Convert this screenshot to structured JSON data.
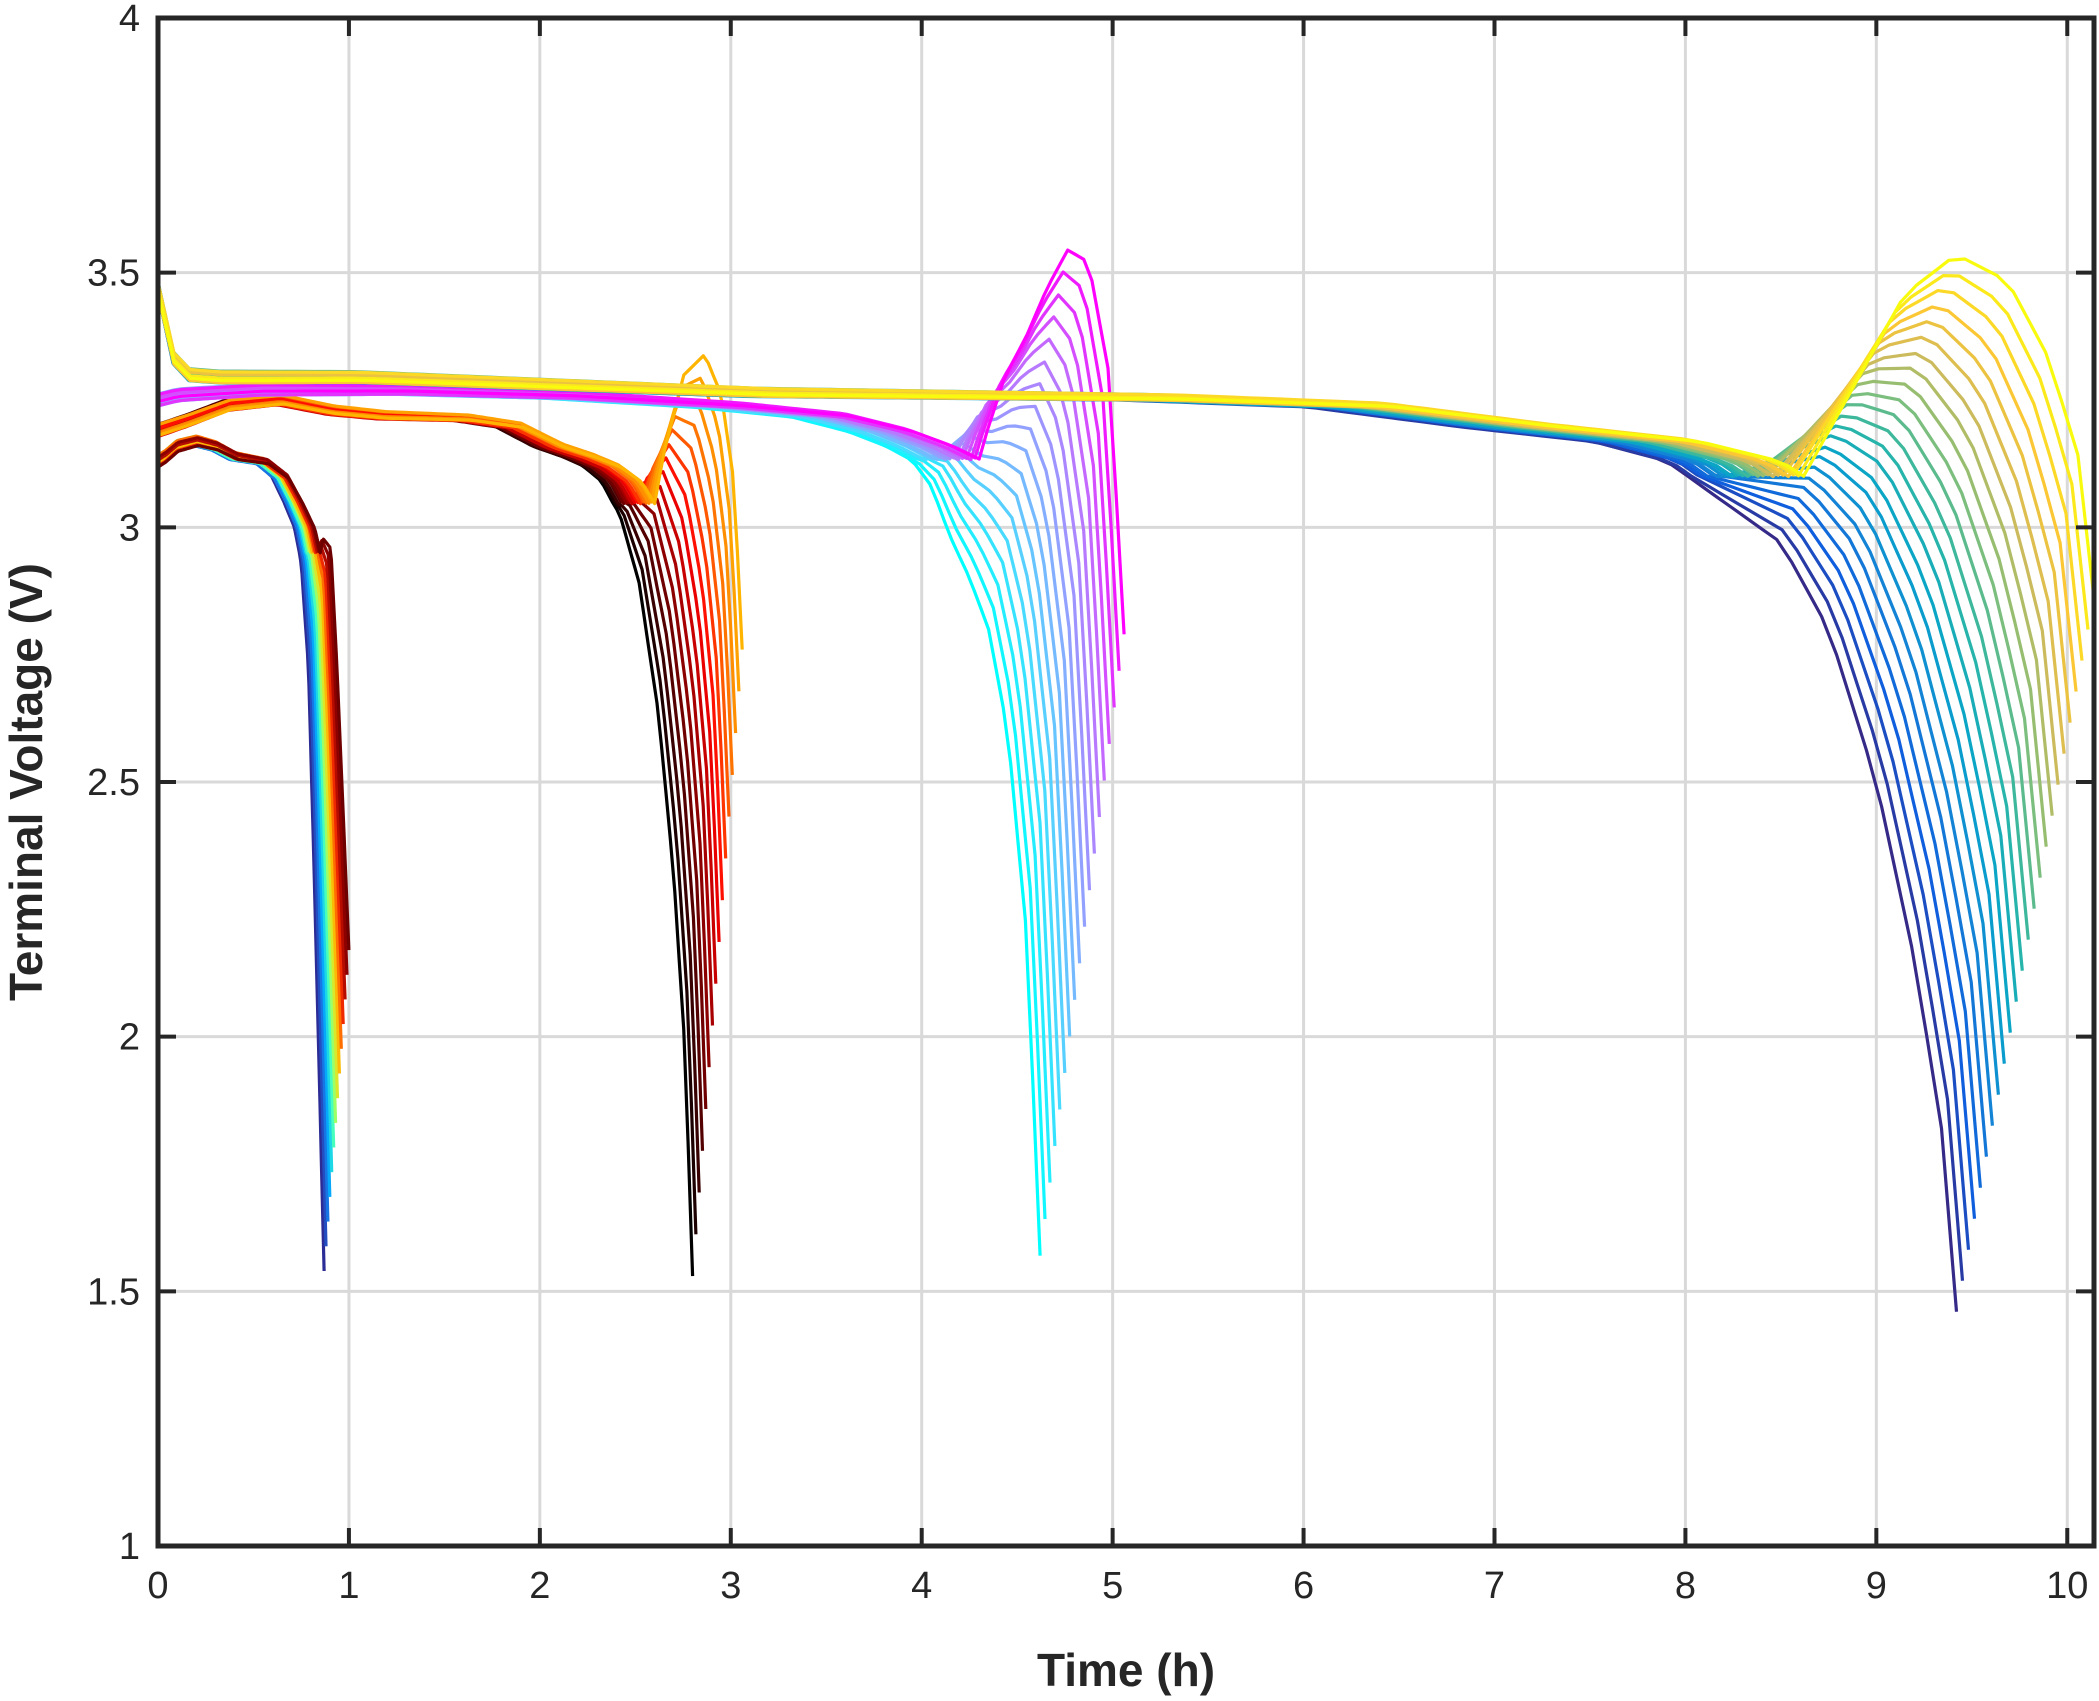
{
  "chart_data": {
    "type": "line",
    "title": "",
    "xlabel": "Time (h)",
    "ylabel": "Terminal Voltage (V)",
    "xlim": [
      0,
      10.14
    ],
    "ylim": [
      1,
      4
    ],
    "xticks": [
      0,
      1,
      2,
      3,
      4,
      5,
      6,
      7,
      8,
      9,
      10
    ],
    "yticks": [
      1,
      1.5,
      2,
      2.5,
      3,
      3.5,
      4
    ],
    "xtick_labels": [
      "0",
      "1",
      "2",
      "3",
      "4",
      "5",
      "6",
      "7",
      "8",
      "9",
      "10"
    ],
    "ytick_labels": [
      "1",
      "1.5",
      "2",
      "2.5",
      "3",
      "3.5",
      "4"
    ],
    "grid": true,
    "legend": "none",
    "groups": [
      {
        "colormap": "jet",
        "curve_count": 14,
        "color_stops": [
          "#2c2c96",
          "#1e64dc",
          "#00b4ff",
          "#3cffc8",
          "#c8ff3c",
          "#ffb400",
          "#ff3200",
          "#a00000",
          "#6e0000"
        ],
        "t_start": [
          0.87,
          1.0
        ],
        "v_end": [
          1.54,
          2.17
        ],
        "profile": [
          [
            0.0,
            3.13
          ],
          [
            0.04,
            3.14
          ],
          [
            0.1,
            3.16
          ],
          [
            0.2,
            3.17
          ],
          [
            0.3,
            3.16
          ],
          [
            0.4,
            3.14
          ],
          [
            0.55,
            3.13
          ],
          [
            0.65,
            3.1
          ],
          [
            0.72,
            3.05
          ],
          [
            0.78,
            3.0
          ],
          [
            0.82,
            2.93
          ],
          [
            0.86,
            2.75
          ],
          [
            0.89,
            2.4
          ],
          [
            0.92,
            2.0
          ],
          [
            0.95,
            1.6
          ]
        ]
      },
      {
        "colormap": "hot",
        "curve_count": 16,
        "color_stops": [
          "#000000",
          "#3c0000",
          "#780000",
          "#b40000",
          "#ff0000",
          "#ff5000",
          "#ff8c00",
          "#ffb400"
        ],
        "t_start": [
          2.8,
          3.06
        ],
        "v_end": [
          1.53,
          2.76
        ],
        "profile": [
          [
            0.0,
            3.19
          ],
          [
            0.15,
            3.21
          ],
          [
            0.35,
            3.24
          ],
          [
            0.6,
            3.25
          ],
          [
            0.85,
            3.23
          ],
          [
            1.1,
            3.22
          ],
          [
            1.5,
            3.215
          ],
          [
            1.75,
            3.2
          ],
          [
            1.95,
            3.16
          ],
          [
            2.1,
            3.14
          ],
          [
            2.22,
            3.12
          ],
          [
            2.32,
            3.09
          ],
          [
            2.42,
            3.02
          ],
          [
            2.52,
            2.88
          ],
          [
            2.62,
            2.62
          ],
          [
            2.7,
            2.3
          ],
          [
            2.76,
            1.95
          ],
          [
            2.8,
            1.5
          ]
        ]
      },
      {
        "colormap": "cool",
        "curve_count": 18,
        "color_stops": [
          "#00ffff",
          "#4cd8ff",
          "#8ca8ff",
          "#c070ff",
          "#ff00ff"
        ],
        "t_start": [
          4.62,
          5.06
        ],
        "v_end": [
          1.57,
          2.79
        ],
        "profile": [
          [
            0.0,
            3.25
          ],
          [
            0.1,
            3.26
          ],
          [
            0.5,
            3.27
          ],
          [
            1.2,
            3.27
          ],
          [
            2.0,
            3.26
          ],
          [
            2.8,
            3.24
          ],
          [
            3.3,
            3.22
          ],
          [
            3.6,
            3.19
          ],
          [
            3.8,
            3.16
          ],
          [
            3.95,
            3.13
          ],
          [
            4.05,
            3.08
          ],
          [
            4.15,
            2.98
          ],
          [
            4.25,
            2.9
          ],
          [
            4.35,
            2.8
          ],
          [
            4.45,
            2.6
          ],
          [
            4.55,
            2.2
          ],
          [
            4.62,
            1.57
          ]
        ]
      },
      {
        "colormap": "parula",
        "curve_count": 24,
        "color_stops": [
          "#352a87",
          "#0f5cdd",
          "#1481d6",
          "#06a4ca",
          "#2eb7a4",
          "#87bf77",
          "#d1bb59",
          "#fec832",
          "#f9fb0e"
        ],
        "t_start": [
          9.42,
          10.14
        ],
        "v_end": [
          1.46,
          2.86
        ],
        "profile": [
          [
            0.0,
            3.47
          ],
          [
            0.03,
            3.4
          ],
          [
            0.08,
            3.33
          ],
          [
            0.15,
            3.3
          ],
          [
            0.3,
            3.295
          ],
          [
            1.0,
            3.295
          ],
          [
            2.0,
            3.28
          ],
          [
            3.0,
            3.265
          ],
          [
            4.0,
            3.26
          ],
          [
            5.0,
            3.255
          ],
          [
            6.0,
            3.24
          ],
          [
            6.8,
            3.2
          ],
          [
            7.5,
            3.17
          ],
          [
            7.9,
            3.13
          ],
          [
            8.2,
            3.05
          ],
          [
            8.5,
            2.97
          ],
          [
            8.75,
            2.8
          ],
          [
            9.0,
            2.5
          ],
          [
            9.2,
            2.15
          ],
          [
            9.35,
            1.8
          ],
          [
            9.42,
            1.46
          ]
        ]
      }
    ]
  }
}
